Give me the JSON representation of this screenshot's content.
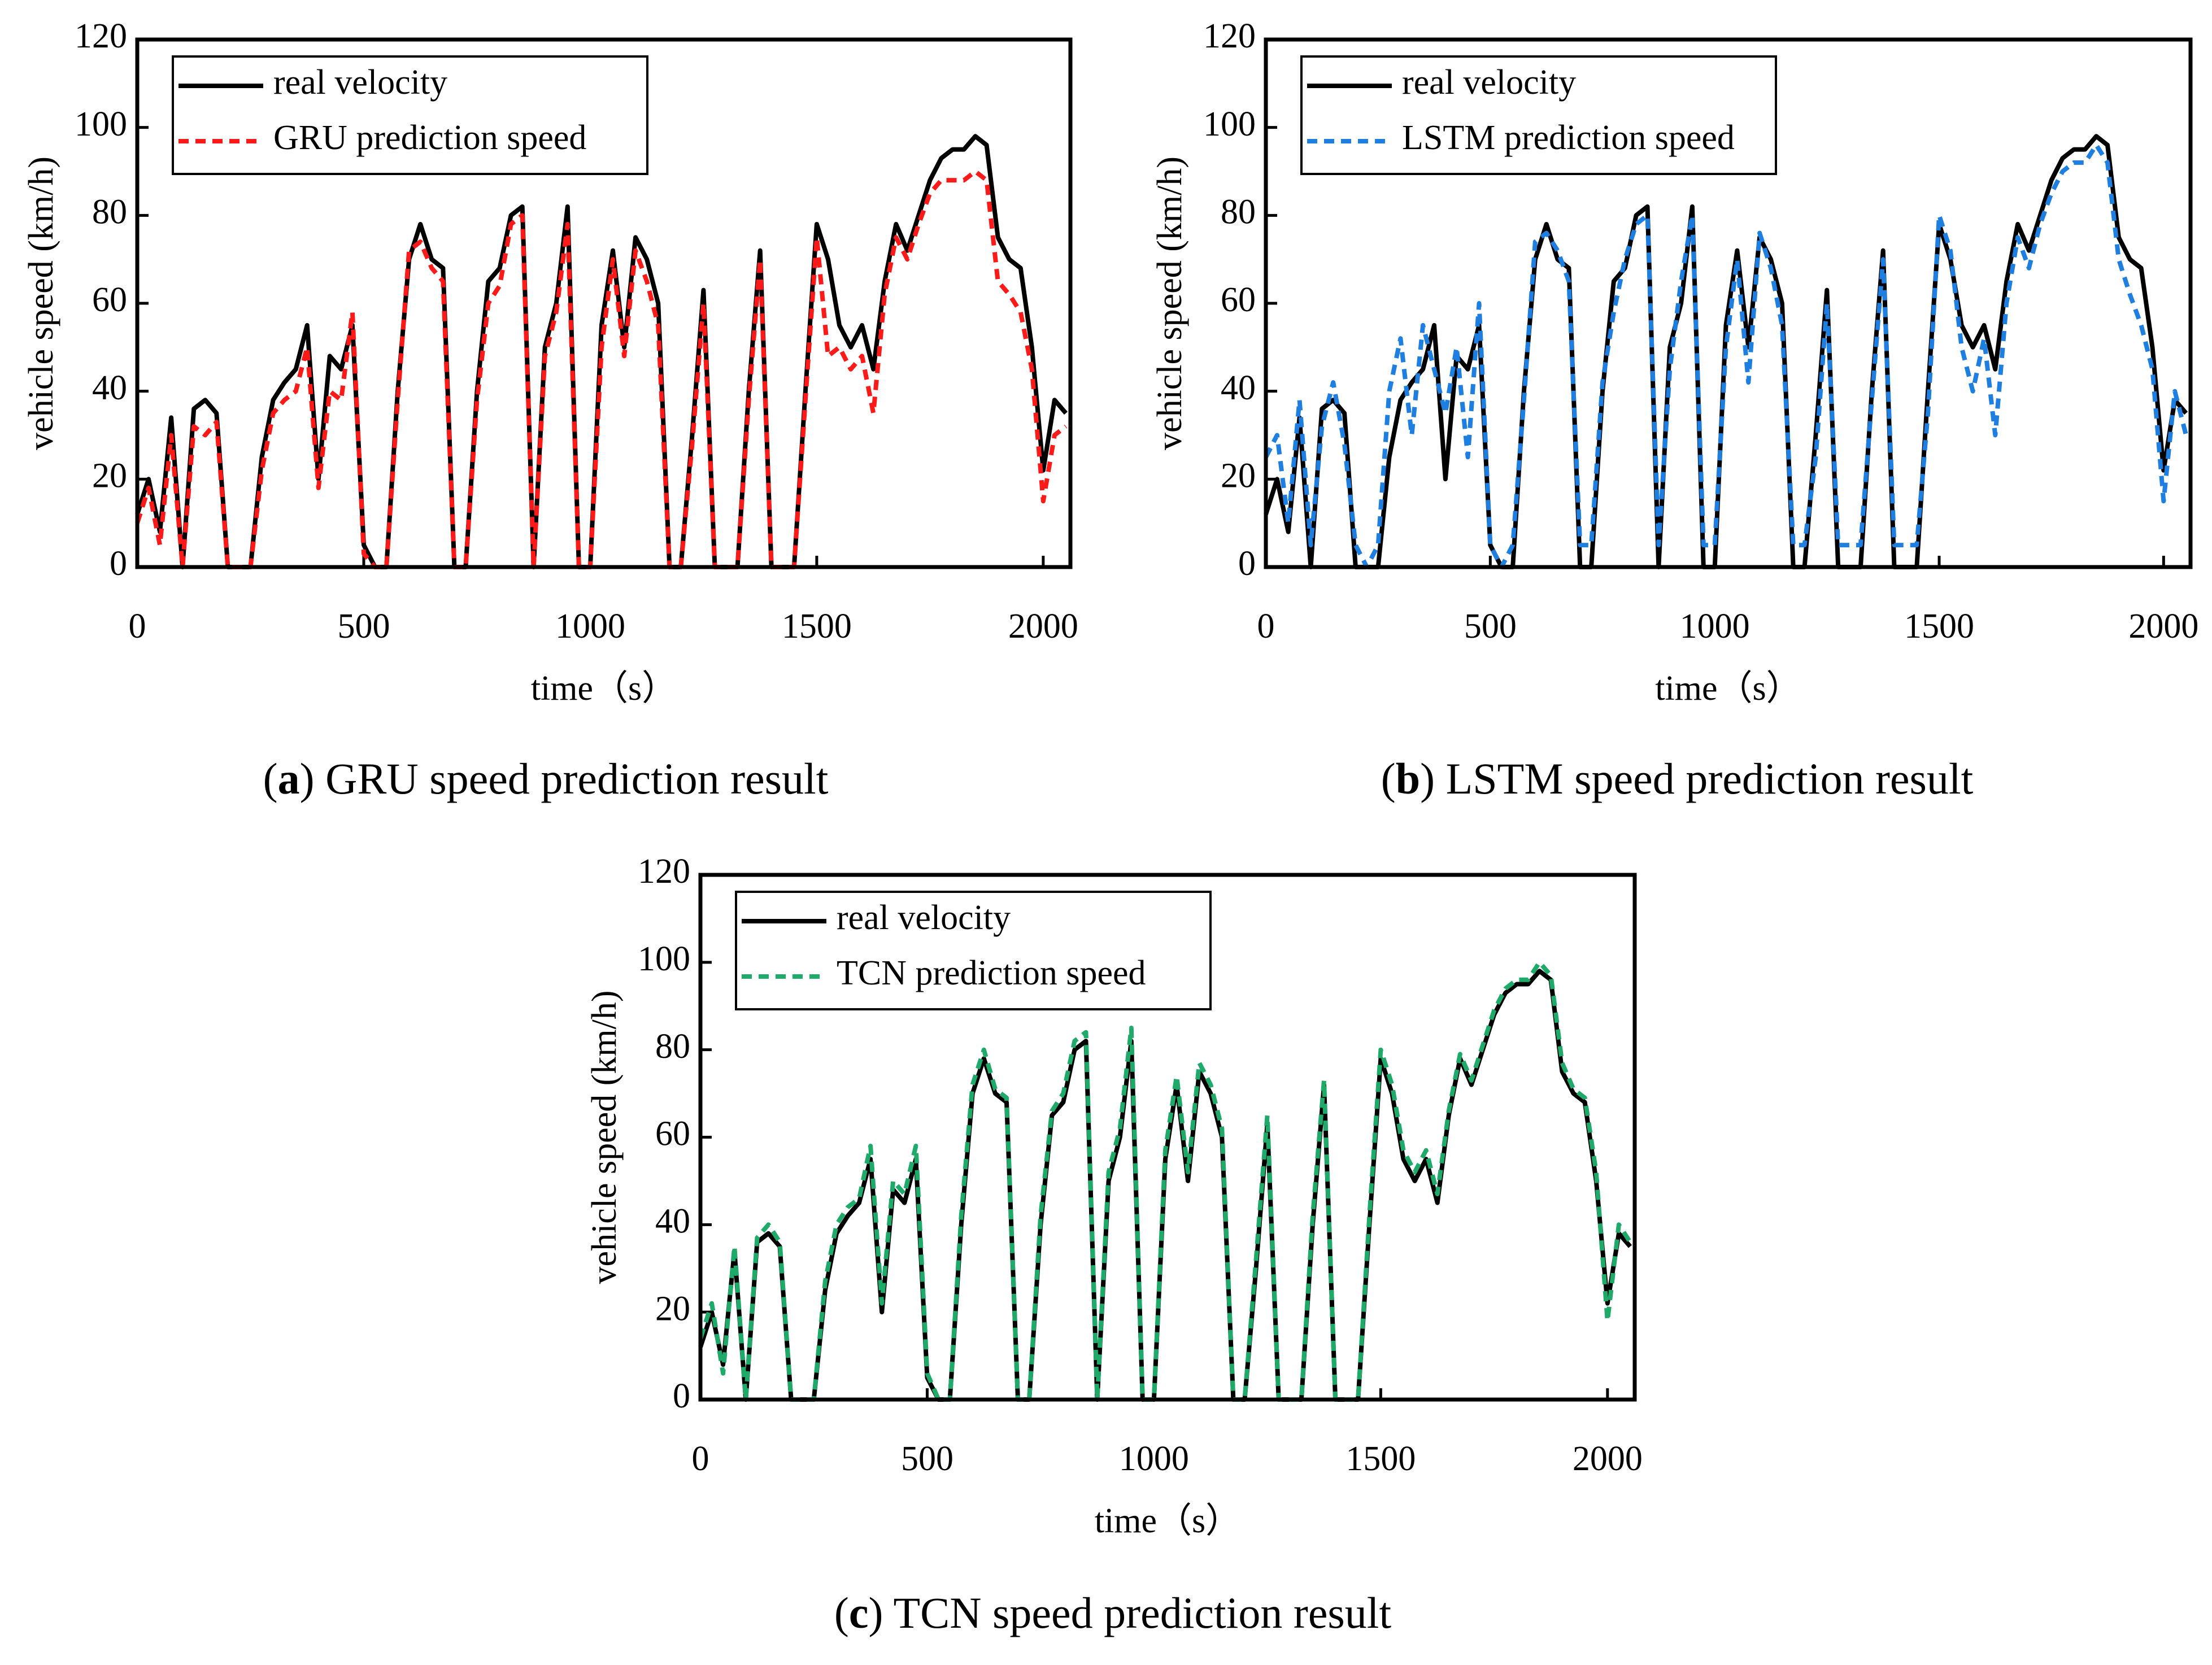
{
  "chart_data": [
    {
      "type": "line",
      "caption": [
        "(",
        "a",
        ") GRU speed prediction result"
      ],
      "xlabel": "time（s）",
      "ylabel": "vehicle speed (km/h)",
      "xlim": [
        0,
        2060
      ],
      "ylim": [
        0,
        120
      ],
      "xticks": [
        0,
        500,
        1000,
        1500,
        2000
      ],
      "yticks": [
        0,
        20,
        40,
        60,
        80,
        100,
        120
      ],
      "legend": "upper left",
      "x": [
        0,
        25,
        50,
        75,
        100,
        125,
        150,
        175,
        200,
        225,
        250,
        275,
        300,
        325,
        350,
        375,
        400,
        425,
        450,
        475,
        500,
        525,
        550,
        575,
        600,
        625,
        650,
        675,
        700,
        725,
        750,
        775,
        800,
        825,
        850,
        875,
        900,
        925,
        950,
        975,
        1000,
        1025,
        1050,
        1075,
        1100,
        1125,
        1150,
        1175,
        1200,
        1225,
        1250,
        1275,
        1300,
        1325,
        1350,
        1375,
        1400,
        1425,
        1450,
        1475,
        1500,
        1525,
        1550,
        1575,
        1600,
        1625,
        1650,
        1675,
        1700,
        1725,
        1750,
        1775,
        1800,
        1825,
        1850,
        1875,
        1900,
        1925,
        1950,
        1975,
        2000,
        2025,
        2050
      ],
      "series": [
        {
          "name": "real velocity",
          "color": "#000000",
          "dashed": false,
          "values": [
            12,
            20,
            8,
            34,
            0,
            36,
            38,
            35,
            0,
            0,
            0,
            25,
            38,
            42,
            45,
            55,
            20,
            48,
            45,
            55,
            5,
            0,
            0,
            40,
            70,
            78,
            70,
            68,
            0,
            0,
            40,
            65,
            68,
            80,
            82,
            0,
            50,
            60,
            82,
            0,
            0,
            55,
            72,
            50,
            75,
            70,
            60,
            0,
            0,
            30,
            63,
            0,
            0,
            0,
            40,
            72,
            0,
            0,
            0,
            40,
            78,
            70,
            55,
            50,
            55,
            45,
            65,
            78,
            72,
            80,
            88,
            93,
            95,
            95,
            98,
            96,
            75,
            70,
            68,
            50,
            22,
            38,
            35
          ]
        },
        {
          "name": "GRU prediction speed",
          "color": "#ff1a1a",
          "dashed": true,
          "values": [
            10,
            18,
            5,
            30,
            0,
            32,
            30,
            33,
            0,
            0,
            0,
            22,
            35,
            38,
            40,
            50,
            18,
            40,
            38,
            58,
            3,
            0,
            0,
            38,
            72,
            74,
            68,
            65,
            0,
            0,
            38,
            60,
            64,
            78,
            80,
            0,
            48,
            58,
            78,
            0,
            0,
            50,
            70,
            48,
            72,
            65,
            55,
            0,
            0,
            28,
            60,
            0,
            0,
            0,
            38,
            70,
            0,
            0,
            0,
            38,
            75,
            48,
            50,
            45,
            48,
            35,
            62,
            75,
            70,
            78,
            85,
            88,
            88,
            88,
            90,
            88,
            65,
            62,
            58,
            45,
            15,
            30,
            32
          ]
        }
      ]
    },
    {
      "type": "line",
      "caption": [
        "(",
        "b",
        ") LSTM speed prediction result"
      ],
      "xlabel": "time（s）",
      "ylabel": "vehicle speed (km/h)",
      "xlim": [
        0,
        2060
      ],
      "ylim": [
        0,
        120
      ],
      "xticks": [
        0,
        500,
        1000,
        1500,
        2000
      ],
      "yticks": [
        0,
        20,
        40,
        60,
        80,
        100,
        120
      ],
      "legend": "upper left",
      "x": [
        0,
        25,
        50,
        75,
        100,
        125,
        150,
        175,
        200,
        225,
        250,
        275,
        300,
        325,
        350,
        375,
        400,
        425,
        450,
        475,
        500,
        525,
        550,
        575,
        600,
        625,
        650,
        675,
        700,
        725,
        750,
        775,
        800,
        825,
        850,
        875,
        900,
        925,
        950,
        975,
        1000,
        1025,
        1050,
        1075,
        1100,
        1125,
        1150,
        1175,
        1200,
        1225,
        1250,
        1275,
        1300,
        1325,
        1350,
        1375,
        1400,
        1425,
        1450,
        1475,
        1500,
        1525,
        1550,
        1575,
        1600,
        1625,
        1650,
        1675,
        1700,
        1725,
        1750,
        1775,
        1800,
        1825,
        1850,
        1875,
        1900,
        1925,
        1950,
        1975,
        2000,
        2025,
        2050
      ],
      "series": [
        {
          "name": "real velocity",
          "color": "#000000",
          "dashed": false,
          "values": [
            12,
            20,
            8,
            34,
            0,
            36,
            38,
            35,
            0,
            0,
            0,
            25,
            38,
            42,
            45,
            55,
            20,
            48,
            45,
            55,
            5,
            0,
            0,
            40,
            70,
            78,
            70,
            68,
            0,
            0,
            40,
            65,
            68,
            80,
            82,
            0,
            50,
            60,
            82,
            0,
            0,
            55,
            72,
            50,
            75,
            70,
            60,
            0,
            0,
            30,
            63,
            0,
            0,
            0,
            40,
            72,
            0,
            0,
            0,
            40,
            78,
            70,
            55,
            50,
            55,
            45,
            65,
            78,
            72,
            80,
            88,
            93,
            95,
            95,
            98,
            96,
            75,
            70,
            68,
            50,
            22,
            38,
            35
          ]
        },
        {
          "name": "LSTM prediction speed",
          "color": "#1f7fe0",
          "dashed": true,
          "values": [
            25,
            30,
            10,
            38,
            5,
            32,
            42,
            28,
            5,
            0,
            5,
            40,
            52,
            30,
            55,
            45,
            35,
            50,
            25,
            60,
            5,
            0,
            5,
            38,
            74,
            76,
            72,
            65,
            5,
            5,
            42,
            58,
            70,
            78,
            80,
            5,
            45,
            65,
            80,
            5,
            5,
            50,
            70,
            42,
            76,
            68,
            55,
            5,
            5,
            25,
            60,
            5,
            5,
            5,
            38,
            70,
            5,
            5,
            5,
            35,
            80,
            72,
            50,
            40,
            52,
            30,
            60,
            75,
            68,
            78,
            85,
            90,
            92,
            92,
            96,
            92,
            70,
            62,
            55,
            45,
            15,
            40,
            30
          ]
        }
      ]
    },
    {
      "type": "line",
      "caption": [
        "(",
        "c",
        ") TCN speed prediction result"
      ],
      "xlabel": "time（s）",
      "ylabel": "vehicle speed (km/h)",
      "xlim": [
        0,
        2060
      ],
      "ylim": [
        0,
        120
      ],
      "xticks": [
        0,
        500,
        1000,
        1500,
        2000
      ],
      "yticks": [
        0,
        20,
        40,
        60,
        80,
        100,
        120
      ],
      "legend": "upper left",
      "x": [
        0,
        25,
        50,
        75,
        100,
        125,
        150,
        175,
        200,
        225,
        250,
        275,
        300,
        325,
        350,
        375,
        400,
        425,
        450,
        475,
        500,
        525,
        550,
        575,
        600,
        625,
        650,
        675,
        700,
        725,
        750,
        775,
        800,
        825,
        850,
        875,
        900,
        925,
        950,
        975,
        1000,
        1025,
        1050,
        1075,
        1100,
        1125,
        1150,
        1175,
        1200,
        1225,
        1250,
        1275,
        1300,
        1325,
        1350,
        1375,
        1400,
        1425,
        1450,
        1475,
        1500,
        1525,
        1550,
        1575,
        1600,
        1625,
        1650,
        1675,
        1700,
        1725,
        1750,
        1775,
        1800,
        1825,
        1850,
        1875,
        1900,
        1925,
        1950,
        1975,
        2000,
        2025,
        2050
      ],
      "series": [
        {
          "name": "real velocity",
          "color": "#000000",
          "dashed": false,
          "values": [
            12,
            20,
            8,
            34,
            0,
            36,
            38,
            35,
            0,
            0,
            0,
            25,
            38,
            42,
            45,
            55,
            20,
            48,
            45,
            55,
            5,
            0,
            0,
            40,
            70,
            78,
            70,
            68,
            0,
            0,
            40,
            65,
            68,
            80,
            82,
            0,
            50,
            60,
            82,
            0,
            0,
            55,
            72,
            50,
            75,
            70,
            60,
            0,
            0,
            30,
            63,
            0,
            0,
            0,
            40,
            72,
            0,
            0,
            0,
            40,
            78,
            70,
            55,
            50,
            55,
            45,
            65,
            78,
            72,
            80,
            88,
            93,
            95,
            95,
            98,
            96,
            75,
            70,
            68,
            50,
            22,
            38,
            35
          ]
        },
        {
          "name": "TCN prediction speed",
          "color": "#1faa6a",
          "dashed": true,
          "values": [
            14,
            22,
            6,
            35,
            0,
            37,
            40,
            36,
            0,
            0,
            0,
            27,
            40,
            44,
            46,
            58,
            22,
            50,
            47,
            58,
            6,
            0,
            0,
            42,
            72,
            80,
            71,
            69,
            0,
            0,
            42,
            66,
            70,
            82,
            84,
            0,
            52,
            62,
            85,
            0,
            0,
            57,
            74,
            52,
            77,
            72,
            62,
            0,
            0,
            32,
            65,
            0,
            0,
            0,
            42,
            73,
            0,
            0,
            0,
            42,
            80,
            72,
            57,
            52,
            57,
            47,
            66,
            79,
            73,
            81,
            89,
            94,
            96,
            96,
            100,
            97,
            77,
            71,
            69,
            52,
            18,
            40,
            36
          ]
        }
      ]
    }
  ]
}
